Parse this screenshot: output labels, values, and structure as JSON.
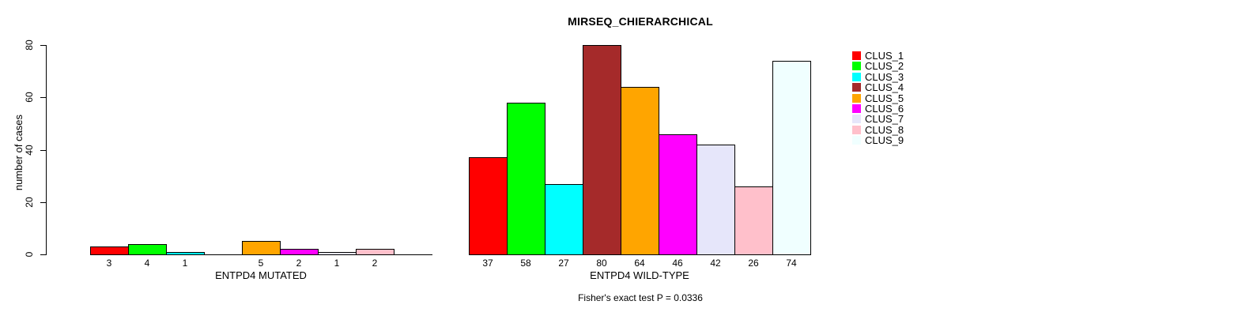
{
  "chart_data": {
    "type": "bar",
    "title": "MIRSEQ_CHIERARCHICAL",
    "ylabel": "number of cases",
    "ylim": [
      0,
      80
    ],
    "yticks": [
      0,
      20,
      40,
      60,
      80
    ],
    "grid": false,
    "legend_position": "right",
    "footnote": "Fisher's exact test P = 0.0336",
    "clusters": [
      {
        "label": "CLUS_1",
        "color": "#FF0000"
      },
      {
        "label": "CLUS_2",
        "color": "#00FF00"
      },
      {
        "label": "CLUS_3",
        "color": "#00FFFF"
      },
      {
        "label": "CLUS_4",
        "color": "#A52A2A"
      },
      {
        "label": "CLUS_5",
        "color": "#FFA500"
      },
      {
        "label": "CLUS_6",
        "color": "#FF00FF"
      },
      {
        "label": "CLUS_7",
        "color": "#E6E6FA"
      },
      {
        "label": "CLUS_8",
        "color": "#FFC0CB"
      },
      {
        "label": "CLUS_9",
        "color": "#F0FFFF"
      }
    ],
    "groups": [
      {
        "label": "ENTPD4 MUTATED",
        "values": [
          3,
          4,
          1,
          0,
          5,
          2,
          1,
          2,
          0
        ],
        "bar_labels": [
          "3",
          "4",
          "1",
          "",
          "5",
          "2",
          "1",
          "2",
          ""
        ]
      },
      {
        "label": "ENTPD4 WILD-TYPE",
        "values": [
          37,
          58,
          27,
          80,
          64,
          46,
          42,
          26,
          74
        ],
        "bar_labels": [
          "37",
          "58",
          "27",
          "80",
          "64",
          "46",
          "42",
          "26",
          "74"
        ]
      }
    ]
  }
}
